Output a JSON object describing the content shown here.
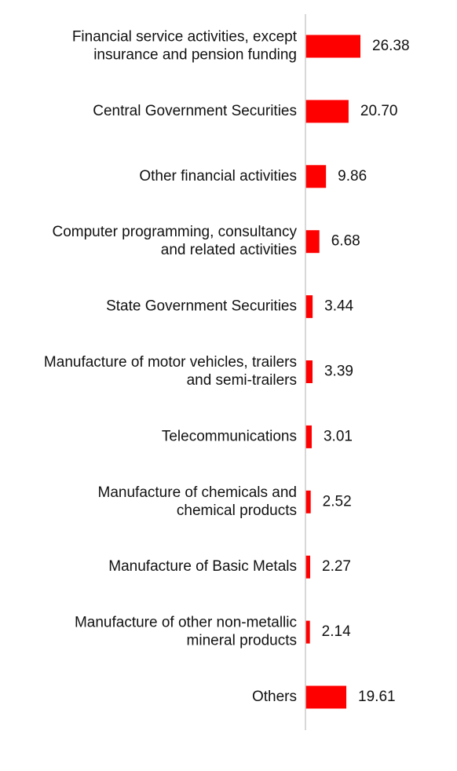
{
  "chart_data": {
    "type": "bar",
    "orientation": "horizontal",
    "categories": [
      "Financial service activities, except insurance and pension funding",
      "Central Government Securities",
      "Other financial activities",
      "Computer programming, consultancy and related activities",
      "State Government Securities",
      "Manufacture of motor vehicles, trailers and semi-trailers",
      "Telecommunications",
      "Manufacture of chemicals and chemical products",
      "Manufacture of Basic Metals",
      "Manufacture of other non-metallic mineral products",
      "Others"
    ],
    "category_lines": [
      [
        "Financial service activities, except",
        "insurance and pension funding"
      ],
      [
        "Central Government Securities"
      ],
      [
        "Other financial activities"
      ],
      [
        "Computer programming, consultancy",
        "and related activities"
      ],
      [
        "State Government Securities"
      ],
      [
        "Manufacture of motor vehicles, trailers",
        "and semi-trailers"
      ],
      [
        "Telecommunications"
      ],
      [
        "Manufacture of chemicals and",
        "chemical products"
      ],
      [
        "Manufacture of Basic Metals"
      ],
      [
        "Manufacture of other non-metallic",
        "mineral products"
      ],
      [
        "Others"
      ]
    ],
    "values": [
      26.38,
      20.7,
      9.86,
      6.68,
      3.44,
      3.39,
      3.01,
      2.52,
      2.27,
      2.14,
      19.61
    ],
    "value_labels": [
      "26.38",
      "20.70",
      "9.86",
      "6.68",
      "3.44",
      "3.39",
      "3.01",
      "2.52",
      "2.27",
      "2.14",
      "19.61"
    ],
    "title": "",
    "xlabel": "",
    "ylabel": "",
    "xlim": [
      0,
      26.38
    ],
    "grid": false,
    "legend": "none",
    "bar_color": "#ff0000",
    "axis_color": "#cccccc",
    "text_color": "#111111"
  }
}
